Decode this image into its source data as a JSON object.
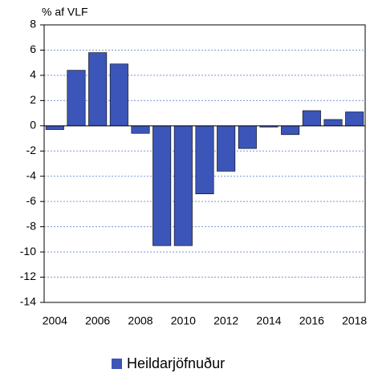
{
  "chart_data": {
    "type": "bar",
    "ylabel": "% af VLF",
    "categories": [
      "2004",
      null,
      "2006",
      null,
      "2008",
      null,
      "2010",
      null,
      "2012",
      null,
      "2014",
      null,
      "2016",
      null,
      "2018"
    ],
    "series": [
      {
        "name": "Heildarjöfnuður",
        "color": "#3b55b8",
        "values": [
          -0.3,
          4.4,
          5.8,
          4.9,
          -0.6,
          -9.5,
          -9.5,
          -5.4,
          -3.6,
          -1.8,
          -0.1,
          -0.7,
          1.2,
          0.5,
          1.1
        ]
      }
    ],
    "ylim": [
      -14,
      8
    ],
    "yticks": [
      -14,
      -12,
      -10,
      -8,
      -6,
      -4,
      -2,
      0,
      2,
      4,
      6,
      8
    ],
    "grid": true,
    "legend": "bottom"
  }
}
